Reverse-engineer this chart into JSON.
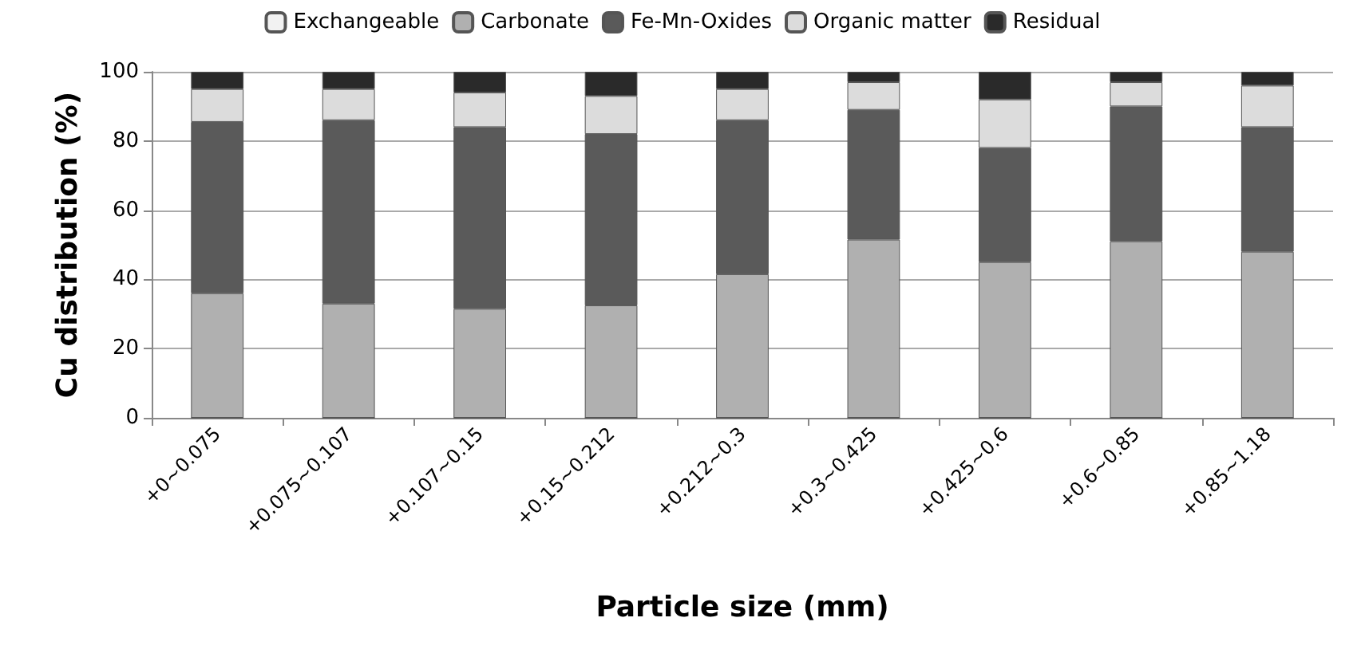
{
  "chart_data": {
    "type": "bar",
    "stacked": true,
    "xlabel": "Particle size (mm)",
    "ylabel": "Cu distribution (%)",
    "categories": [
      "+0~0.075",
      "+0.075~0.107",
      "+0.107~0.15",
      "+0.15~0.212",
      "+0.212~0.3",
      "+0.3~0.425",
      "+0.425~0.6",
      "+0.6~0.85",
      "+0.85~1.18"
    ],
    "series": [
      {
        "name": "Exchangeable",
        "color": "#f2f2f2",
        "values": [
          0,
          0,
          0,
          0,
          0,
          0,
          0,
          0,
          0
        ]
      },
      {
        "name": "Carbonate",
        "color": "#b0b0b0",
        "values": [
          36,
          33,
          31.5,
          32.5,
          41.5,
          51.5,
          45,
          51,
          48
        ]
      },
      {
        "name": "Fe-Mn-Oxides",
        "color": "#5a5a5a",
        "values": [
          49.5,
          53,
          52.5,
          49.5,
          44.5,
          37.5,
          33,
          39,
          36
        ]
      },
      {
        "name": "Organic matter",
        "color": "#dcdcdc",
        "values": [
          9.5,
          9,
          10,
          11,
          9,
          8,
          14,
          7,
          12
        ]
      },
      {
        "name": "Residual",
        "color": "#2a2a2a",
        "values": [
          5,
          5,
          6,
          7,
          5,
          3,
          8,
          3,
          4
        ]
      }
    ],
    "ylim": [
      0,
      100
    ],
    "yticks": [
      0,
      20,
      40,
      60,
      80,
      100
    ],
    "grid": "y",
    "legend": "top"
  }
}
